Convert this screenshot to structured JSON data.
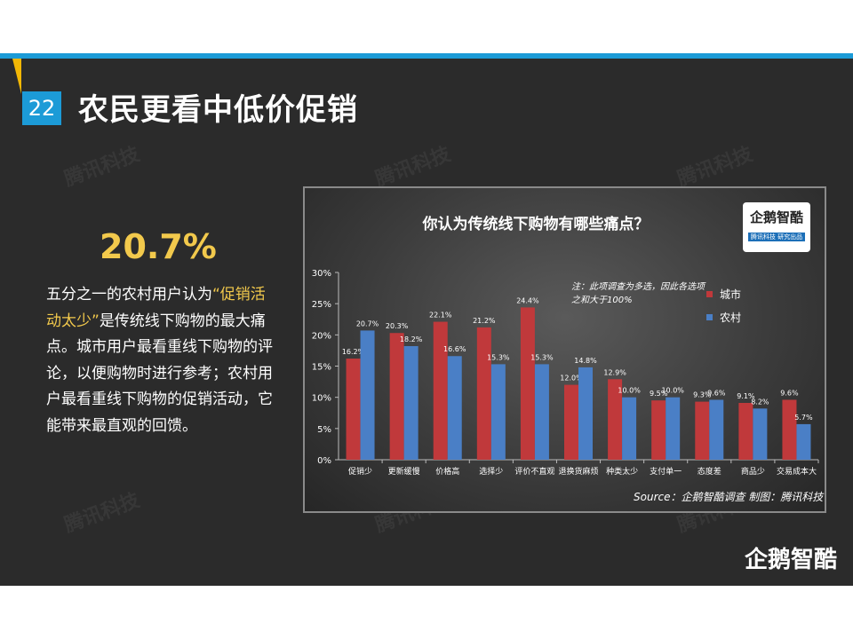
{
  "page": {
    "page_number": "22",
    "title": "农民更看中低价促销",
    "highlight_percent": "20.7%",
    "text_before": "五分之一的农村用户认为",
    "text_highlight": "“促销活动太少”",
    "text_after": "是传统线下购物的最大痛点。城市用户最看重线下购物的评论，以便购物时进行参考；农村用户最看重线下购物的促销活动，它能带来最直观的回馈。",
    "watermark": "腾讯科技",
    "bottom_logo": "企鹅智酷"
  },
  "colors": {
    "accent_blue": "#1c9bd7",
    "accent_yellow": "#f2c94c",
    "city_red": "#c0393b",
    "rural_blue": "#4a7fc6"
  },
  "chart_data": {
    "type": "bar",
    "title": "你认为传统线下购物有哪些痛点？",
    "note": "注：此项调查为多选，因此各选项之和大于100%",
    "source": "Source：企鹅智酷调查  制图：腾讯科技",
    "logo_text": "企鹅智酷",
    "logo_sub": "腾讯科技 研究出品",
    "categories": [
      "促销少",
      "更新缓慢",
      "价格高",
      "选择少",
      "评价不直观",
      "退换货麻烦",
      "种类太少",
      "支付单一",
      "态度差",
      "商品少",
      "交易成本大"
    ],
    "series": [
      {
        "name": "城市",
        "color": "#c0393b",
        "values": [
          16.2,
          20.3,
          22.1,
          21.2,
          24.4,
          12.0,
          12.9,
          9.5,
          9.3,
          9.1,
          9.6
        ]
      },
      {
        "name": "农村",
        "color": "#4a7fc6",
        "values": [
          20.7,
          18.2,
          16.6,
          15.3,
          15.3,
          14.8,
          10.0,
          10.0,
          9.6,
          8.2,
          5.7
        ]
      }
    ],
    "ylim": [
      0,
      30
    ],
    "yticks": [
      "0%",
      "5%",
      "10%",
      "15%",
      "20%",
      "25%",
      "30%"
    ],
    "legend_position": "top-right",
    "grid": false
  }
}
